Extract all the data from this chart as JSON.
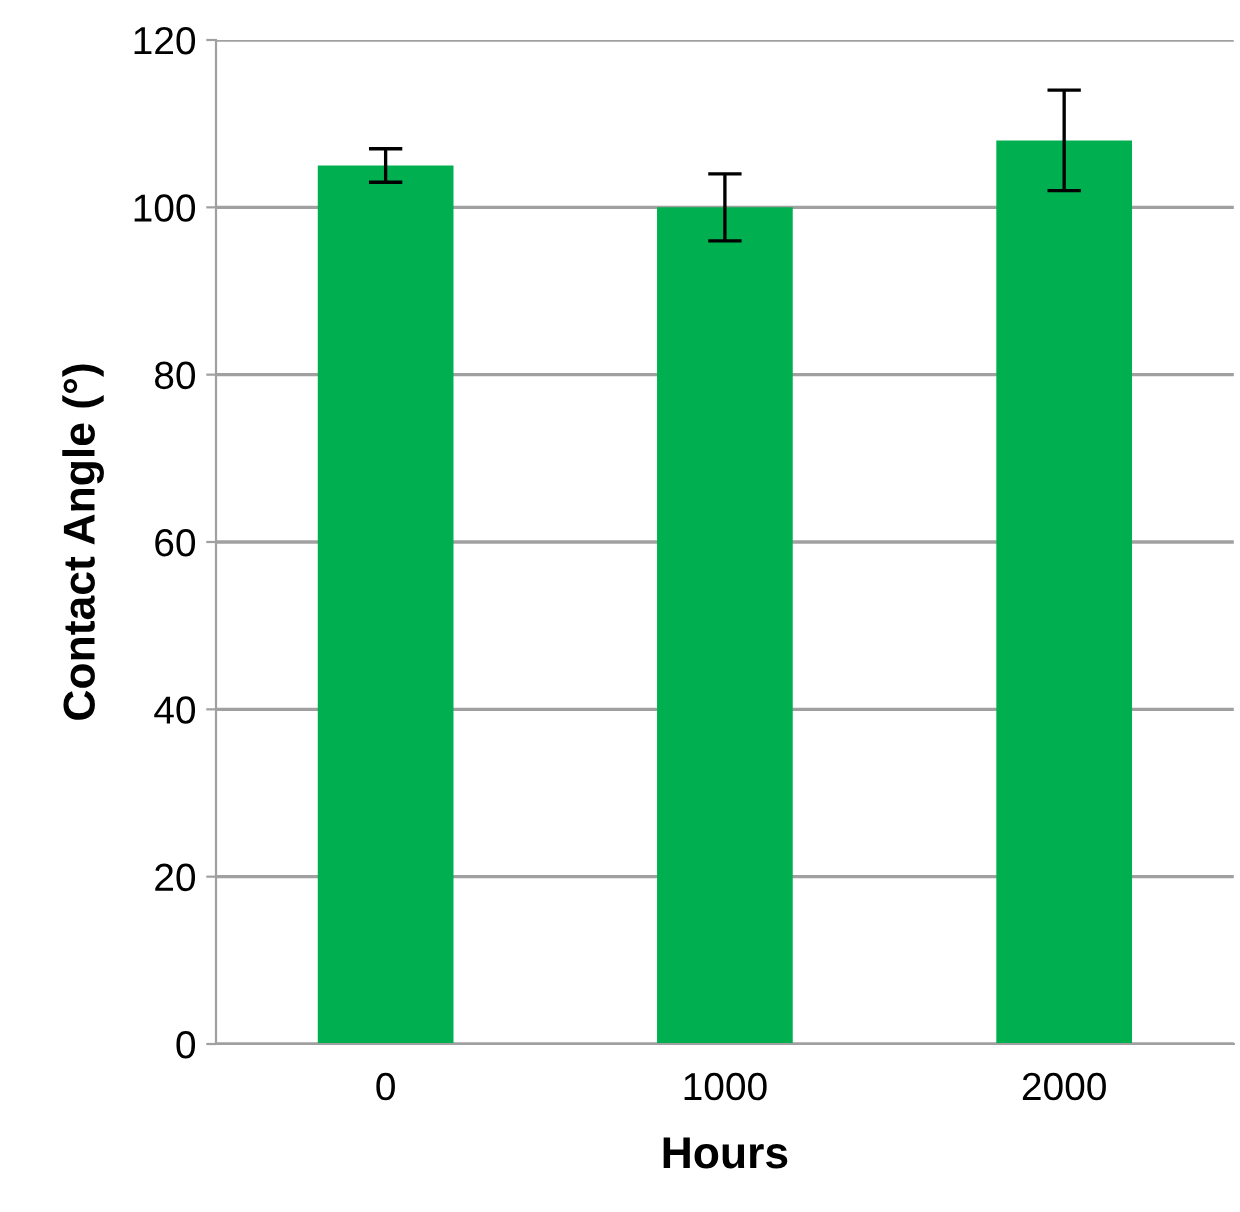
{
  "chart_data": {
    "type": "bar",
    "xlabel": "Hours",
    "ylabel": "Contact Angle (°)",
    "categories": [
      "0",
      "1000",
      "2000"
    ],
    "values": [
      105,
      100,
      108
    ],
    "errors": [
      2,
      4,
      6
    ],
    "color": "#00b050",
    "ylim": [
      0,
      120
    ],
    "yticks": [
      0,
      20,
      40,
      60,
      80,
      100,
      120
    ],
    "grid": "y"
  }
}
